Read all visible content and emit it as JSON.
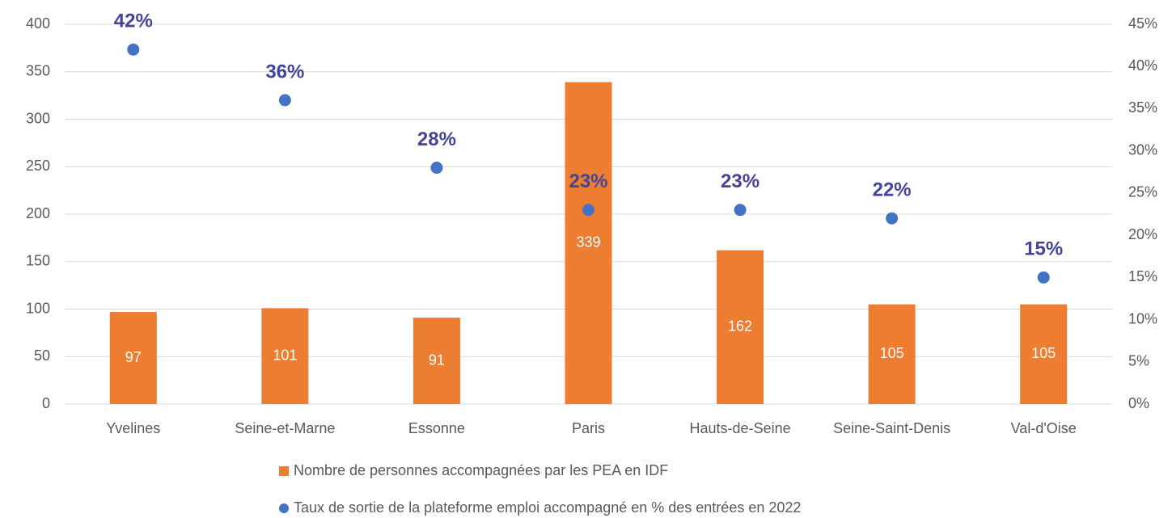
{
  "chart_data": {
    "type": "bar",
    "categories": [
      "Yvelines",
      "Seine-et-Marne",
      "Essonne",
      "Paris",
      "Hauts-de-Seine",
      "Seine-Saint-Denis",
      "Val-d'Oise"
    ],
    "series": [
      {
        "name": "Nombre de personnes accompagnées par les PEA en IDF",
        "type": "bar",
        "color": "#ed7d31",
        "values": [
          97,
          101,
          91,
          339,
          162,
          105,
          105
        ]
      },
      {
        "name": "Taux de sortie de la plateforme emploi accompagné en % des entrées en 2022",
        "type": "scatter",
        "axis": "y2",
        "color": "#4472c4",
        "values": [
          42,
          36,
          28,
          23,
          23,
          22,
          15
        ],
        "value_labels": [
          "42%",
          "36%",
          "28%",
          "23%",
          "23%",
          "22%",
          "15%"
        ]
      }
    ],
    "ylim": [
      0,
      400
    ],
    "yticks": [
      0,
      50,
      100,
      150,
      200,
      250,
      300,
      350,
      400
    ],
    "y2lim": [
      0,
      45
    ],
    "y2ticks": [
      {
        "value": 0,
        "label": "0%"
      },
      {
        "value": 5,
        "label": "5%"
      },
      {
        "value": 10,
        "label": "10%"
      },
      {
        "value": 15,
        "label": "15%"
      },
      {
        "value": 20,
        "label": "20%"
      },
      {
        "value": 25,
        "label": "25%"
      },
      {
        "value": 30,
        "label": "30%"
      },
      {
        "value": 35,
        "label": "35%"
      },
      {
        "value": 40,
        "label": "40%"
      },
      {
        "value": 45,
        "label": "45%"
      }
    ],
    "grid": true,
    "legend": "bottom"
  }
}
